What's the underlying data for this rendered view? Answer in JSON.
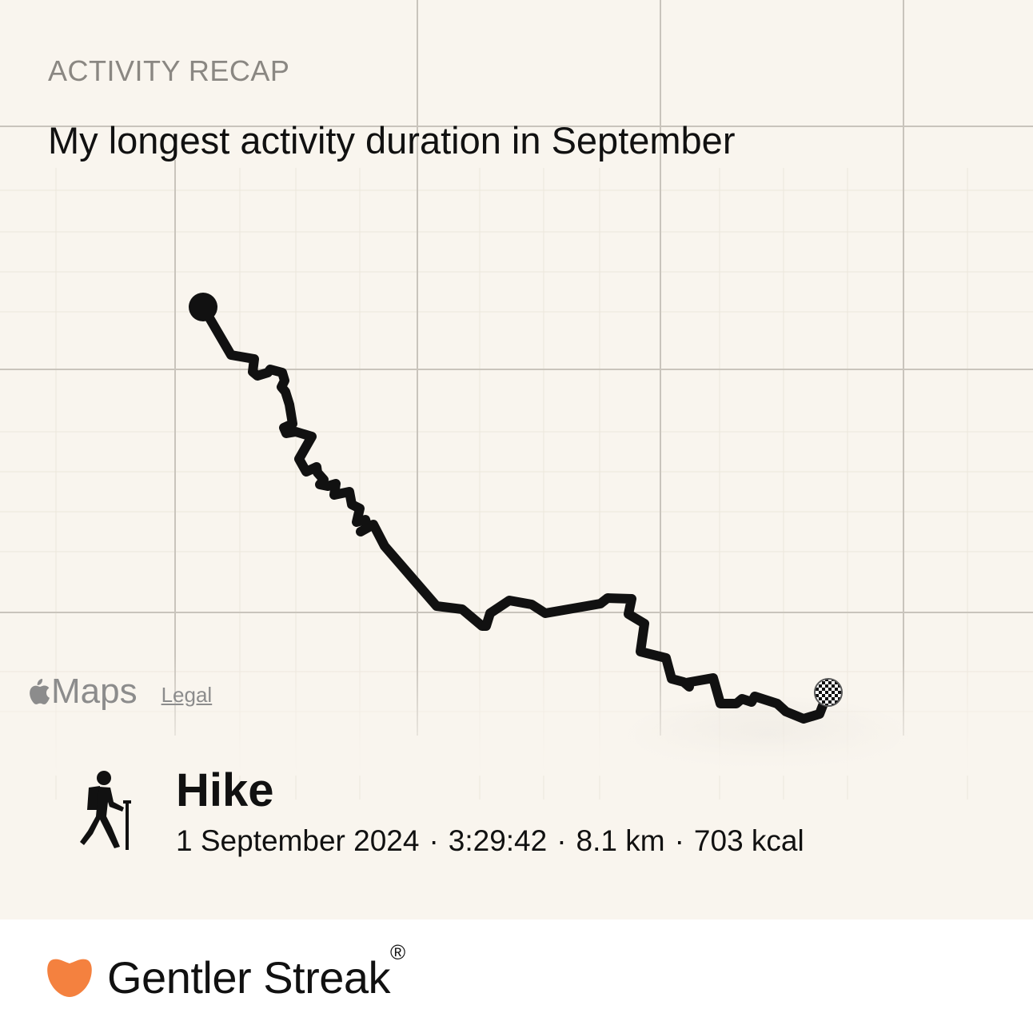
{
  "header": {
    "eyebrow": "ACTIVITY RECAP",
    "title": "My longest activity duration in September"
  },
  "map": {
    "attribution": {
      "logo_icon": "apple-icon",
      "logo_text": "Maps",
      "legal_label": "Legal"
    },
    "route": {
      "start_marker": "start-dot",
      "finish_marker": "checkered-flag-icon",
      "line_color": "#111111"
    }
  },
  "activity": {
    "icon": "hiker-icon",
    "name": "Hike",
    "date": "1 September 2024",
    "duration": "3:29:42",
    "distance": "8.1 km",
    "energy": "703 kcal",
    "separator": "·"
  },
  "brand": {
    "logo_icon": "heart-blob-icon",
    "name": "Gentler Streak",
    "registered": "®",
    "accent_color": "#f4813f"
  },
  "colors": {
    "background": "#f9f5ee",
    "footer_background": "#ffffff",
    "muted_text": "#8a8782"
  }
}
